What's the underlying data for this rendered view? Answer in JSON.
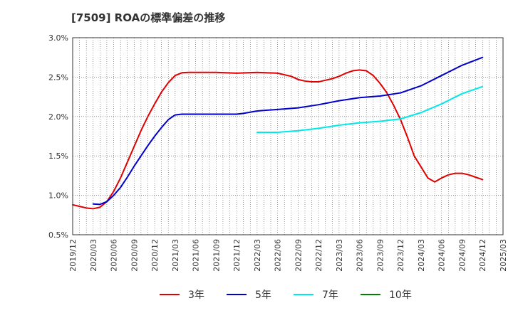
{
  "chart_data": {
    "type": "line",
    "title": "[7509]  ROAの標準偏差の推移",
    "xlabel": "",
    "ylabel": "",
    "ylim": [
      0.5,
      3.0
    ],
    "x_ticks": [
      "2019/12",
      "2020/03",
      "2020/06",
      "2020/09",
      "2020/12",
      "2021/03",
      "2021/06",
      "2021/09",
      "2021/12",
      "2022/03",
      "2022/06",
      "2022/09",
      "2022/12",
      "2023/03",
      "2023/06",
      "2023/09",
      "2023/12",
      "2024/03",
      "2024/06",
      "2024/09",
      "2024/12",
      "2025/03"
    ],
    "y_ticks": [
      {
        "value": 0.5,
        "label": "0.5%"
      },
      {
        "value": 1.0,
        "label": "1.0%"
      },
      {
        "value": 1.5,
        "label": "1.5%"
      },
      {
        "value": 2.0,
        "label": "2.0%"
      },
      {
        "value": 2.5,
        "label": "2.5%"
      },
      {
        "value": 3.0,
        "label": "3.0%"
      }
    ],
    "grid": true,
    "legend_position": "bottom",
    "series": [
      {
        "name": "3年",
        "color": "#e00000",
        "points": [
          [
            "2019/12",
            0.88
          ],
          [
            "2020/01",
            0.86
          ],
          [
            "2020/02",
            0.84
          ],
          [
            "2020/03",
            0.83
          ],
          [
            "2020/04",
            0.85
          ],
          [
            "2020/05",
            0.92
          ],
          [
            "2020/06",
            1.05
          ],
          [
            "2020/07",
            1.22
          ],
          [
            "2020/08",
            1.42
          ],
          [
            "2020/09",
            1.62
          ],
          [
            "2020/10",
            1.82
          ],
          [
            "2020/11",
            2.0
          ],
          [
            "2020/12",
            2.16
          ],
          [
            "2021/01",
            2.31
          ],
          [
            "2021/02",
            2.43
          ],
          [
            "2021/03",
            2.52
          ],
          [
            "2021/04",
            2.555
          ],
          [
            "2021/05",
            2.56
          ],
          [
            "2021/06",
            2.56
          ],
          [
            "2021/09",
            2.56
          ],
          [
            "2021/12",
            2.55
          ],
          [
            "2022/03",
            2.56
          ],
          [
            "2022/06",
            2.55
          ],
          [
            "2022/08",
            2.51
          ],
          [
            "2022/09",
            2.47
          ],
          [
            "2022/10",
            2.45
          ],
          [
            "2022/11",
            2.44
          ],
          [
            "2022/12",
            2.44
          ],
          [
            "2023/01",
            2.46
          ],
          [
            "2023/02",
            2.48
          ],
          [
            "2023/03",
            2.51
          ],
          [
            "2023/04",
            2.55
          ],
          [
            "2023/05",
            2.58
          ],
          [
            "2023/06",
            2.59
          ],
          [
            "2023/07",
            2.58
          ],
          [
            "2023/08",
            2.52
          ],
          [
            "2023/09",
            2.42
          ],
          [
            "2023/10",
            2.3
          ],
          [
            "2023/11",
            2.14
          ],
          [
            "2023/12",
            1.96
          ],
          [
            "2024/01",
            1.74
          ],
          [
            "2024/02",
            1.5
          ],
          [
            "2024/03",
            1.36
          ],
          [
            "2024/04",
            1.22
          ],
          [
            "2024/05",
            1.17
          ],
          [
            "2024/06",
            1.22
          ],
          [
            "2024/07",
            1.26
          ],
          [
            "2024/08",
            1.28
          ],
          [
            "2024/09",
            1.28
          ],
          [
            "2024/10",
            1.26
          ],
          [
            "2024/11",
            1.23
          ],
          [
            "2024/12",
            1.2
          ]
        ]
      },
      {
        "name": "5年",
        "color": "#0000cc",
        "points": [
          [
            "2020/03",
            0.89
          ],
          [
            "2020/04",
            0.885
          ],
          [
            "2020/05",
            0.92
          ],
          [
            "2020/06",
            1.0
          ],
          [
            "2020/07",
            1.1
          ],
          [
            "2020/08",
            1.23
          ],
          [
            "2020/09",
            1.37
          ],
          [
            "2020/10",
            1.5
          ],
          [
            "2020/11",
            1.63
          ],
          [
            "2020/12",
            1.75
          ],
          [
            "2021/01",
            1.86
          ],
          [
            "2021/02",
            1.96
          ],
          [
            "2021/03",
            2.02
          ],
          [
            "2021/04",
            2.03
          ],
          [
            "2021/06",
            2.03
          ],
          [
            "2021/09",
            2.03
          ],
          [
            "2021/12",
            2.03
          ],
          [
            "2022/01",
            2.04
          ],
          [
            "2022/03",
            2.07
          ],
          [
            "2022/06",
            2.09
          ],
          [
            "2022/09",
            2.11
          ],
          [
            "2022/12",
            2.15
          ],
          [
            "2023/03",
            2.2
          ],
          [
            "2023/06",
            2.24
          ],
          [
            "2023/09",
            2.26
          ],
          [
            "2023/12",
            2.3
          ],
          [
            "2024/03",
            2.39
          ],
          [
            "2024/06",
            2.52
          ],
          [
            "2024/09",
            2.65
          ],
          [
            "2024/12",
            2.75
          ]
        ]
      },
      {
        "name": "7年",
        "color": "#00e8e8",
        "points": [
          [
            "2022/03",
            1.8
          ],
          [
            "2022/06",
            1.8
          ],
          [
            "2022/09",
            1.82
          ],
          [
            "2022/12",
            1.85
          ],
          [
            "2023/03",
            1.89
          ],
          [
            "2023/06",
            1.92
          ],
          [
            "2023/09",
            1.94
          ],
          [
            "2023/12",
            1.97
          ],
          [
            "2024/03",
            2.05
          ],
          [
            "2024/06",
            2.16
          ],
          [
            "2024/09",
            2.29
          ],
          [
            "2024/12",
            2.38
          ]
        ]
      },
      {
        "name": "10年",
        "color": "#008000",
        "points": []
      }
    ]
  }
}
